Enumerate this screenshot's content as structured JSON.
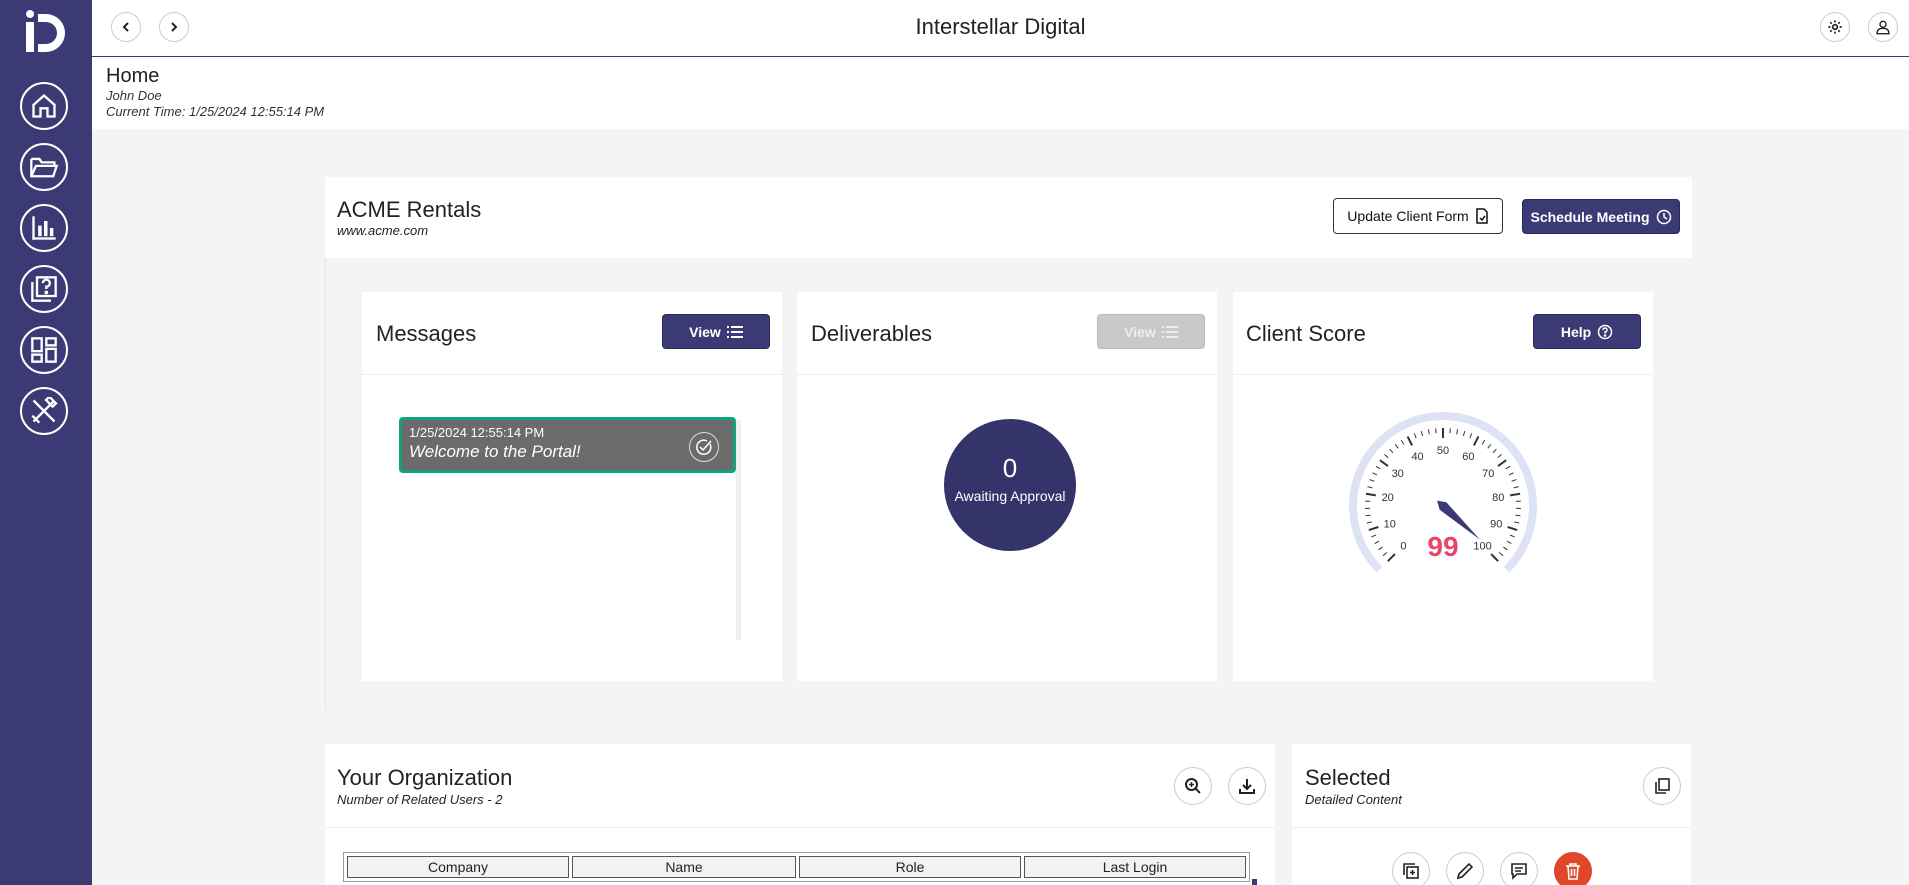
{
  "app": {
    "title": "Interstellar Digital",
    "logo": "interstellar-digital-logo"
  },
  "nav": {
    "icons": [
      "home-icon",
      "folder-icon",
      "bar-chart-icon",
      "help-icon",
      "dashboard-icon",
      "tools-icon"
    ],
    "back_icon": "chevron-left-icon",
    "forward_icon": "chevron-right-icon",
    "settings_icon": "gear-icon",
    "user_icon": "user-icon"
  },
  "page": {
    "title": "Home",
    "user": "John Doe",
    "time": "Current Time: 1/25/2024 12:55:14 PM"
  },
  "client": {
    "name": "ACME Rentals",
    "url": "www.acme.com",
    "update_form_label": "Update Client Form",
    "schedule_label": "Schedule Meeting"
  },
  "messages": {
    "title": "Messages",
    "view_label": "View",
    "items": [
      {
        "date": "1/25/2024 12:55:14 PM",
        "text": "Welcome to the Portal!"
      }
    ]
  },
  "deliverables": {
    "title": "Deliverables",
    "view_label": "View",
    "count": "0",
    "count_label": "Awaiting Approval"
  },
  "client_score": {
    "title": "Client Score",
    "help_label": "Help",
    "score": "99",
    "score_value": 99,
    "gauge_ticks": [
      "0",
      "10",
      "20",
      "30",
      "40",
      "50",
      "60",
      "70",
      "80",
      "90",
      "100"
    ],
    "accent": "#e8456b"
  },
  "organization": {
    "title": "Your Organization",
    "subtitle": "Number of Related Users - 2",
    "columns": [
      "Company",
      "Name",
      "Role",
      "Last Login"
    ]
  },
  "selected": {
    "title": "Selected",
    "subtitle": "Detailed Content"
  },
  "colors": {
    "primary": "#3b3a74",
    "success": "#10a37f",
    "danger": "#e0462a"
  }
}
